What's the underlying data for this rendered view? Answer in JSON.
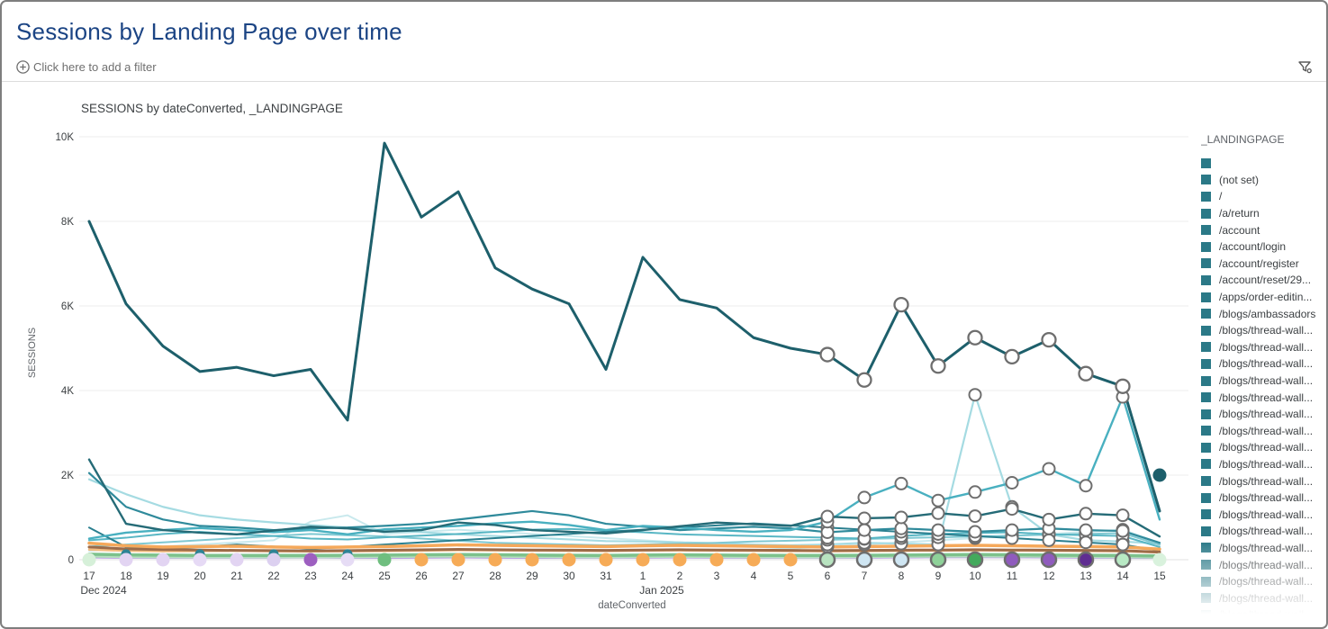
{
  "header": {
    "title": "Sessions by Landing Page over time"
  },
  "filter_bar": {
    "add_filter_label": "Click here to add a filter",
    "add_icon": "plus-circle-icon",
    "filter_icon": "filter-funnel-icon"
  },
  "chart": {
    "title": "SESSIONS by dateConverted, _LANDINGPAGE"
  },
  "legend": {
    "header": "_LANDINGPAGE",
    "swatch_color": "#2b7987",
    "items": [
      "",
      "(not set)",
      "/",
      "/a/return",
      "/account",
      "/account/login",
      "/account/register",
      "/account/reset/29...",
      "/apps/order-editin...",
      "/blogs/ambassadors",
      "/blogs/thread-wall...",
      "/blogs/thread-wall...",
      "/blogs/thread-wall...",
      "/blogs/thread-wall...",
      "/blogs/thread-wall...",
      "/blogs/thread-wall...",
      "/blogs/thread-wall...",
      "/blogs/thread-wall...",
      "/blogs/thread-wall...",
      "/blogs/thread-wall...",
      "/blogs/thread-wall...",
      "/blogs/thread-wall...",
      "/blogs/thread-wall...",
      "/blogs/thread-wall...",
      "/blogs/thread-wall...",
      "/blogs/thread-wall...",
      "/blogs/thread-wall...",
      "/blogs/thread-wall..."
    ]
  },
  "colors": {
    "title_blue": "#1b4484",
    "main_line": "#1d5f6b",
    "grid": "#e9e9e9",
    "axis_text": "#3c4043",
    "axis_title": "#5f6368"
  },
  "chart_data": {
    "type": "line",
    "title": "SESSIONS by dateConverted, _LANDINGPAGE",
    "xlabel": "dateConverted",
    "ylabel": "SESSIONS",
    "ylim": [
      0,
      10000
    ],
    "grid": true,
    "legend_position": "right",
    "x_labels": [
      "17",
      "18",
      "19",
      "20",
      "21",
      "22",
      "23",
      "24",
      "25",
      "26",
      "27",
      "28",
      "29",
      "30",
      "31",
      "1",
      "2",
      "3",
      "4",
      "5",
      "6",
      "7",
      "8",
      "9",
      "10",
      "11",
      "12",
      "13",
      "14",
      "15"
    ],
    "month_labels": [
      {
        "label": "Dec 2024",
        "day_index": 0,
        "dx": 16
      },
      {
        "label": "Jan 2025",
        "day_index": 15,
        "dx": 21
      }
    ],
    "y_ticks": [
      {
        "label": "10K",
        "value": 10000
      },
      {
        "label": "8K",
        "value": 8000
      },
      {
        "label": "6K",
        "value": 6000
      },
      {
        "label": "4K",
        "value": 4000
      },
      {
        "label": "2K",
        "value": 2000
      },
      {
        "label": "0",
        "value": 0
      }
    ],
    "series": [
      {
        "name": "pale-low",
        "color": "#c9e9ed",
        "width": 2,
        "markers": true,
        "values": [
          210,
          260,
          310,
          360,
          410,
          460,
          900,
          1050,
          610,
          660,
          710,
          660,
          610,
          560,
          510,
          460,
          410,
          360,
          310,
          260,
          310,
          360,
          410,
          460,
          510,
          560,
          610,
          660,
          710,
          400
        ]
      },
      {
        "name": "pale-spike",
        "color": "#a5dbe2",
        "width": 2.2,
        "markers": true,
        "values": [
          1900,
          1550,
          1250,
          1050,
          950,
          880,
          820,
          760,
          700,
          650,
          600,
          560,
          520,
          480,
          440,
          430,
          410,
          390,
          360,
          340,
          360,
          400,
          380,
          360,
          3900,
          1250,
          600,
          460,
          430,
          380
        ]
      },
      {
        "name": "teal-4",
        "color": "#7fc8d2",
        "width": 2,
        "markers": true,
        "values": [
          310,
          360,
          410,
          460,
          510,
          560,
          610,
          580,
          550,
          500,
          450,
          400,
          380,
          360,
          340,
          360,
          380,
          400,
          430,
          450,
          470,
          490,
          510,
          530,
          550,
          570,
          590,
          610,
          630,
          350
        ]
      },
      {
        "name": "teal-3",
        "color": "#58b6c4",
        "width": 2,
        "markers": true,
        "values": [
          460,
          520,
          610,
          660,
          600,
          560,
          500,
          480,
          530,
          570,
          610,
          660,
          710,
          730,
          690,
          650,
          600,
          580,
          560,
          540,
          520,
          500,
          560,
          610,
          630,
          650,
          600,
          580,
          560,
          300
        ]
      },
      {
        "name": "teal-5",
        "color": "#2a7f8f",
        "width": 2,
        "markers": true,
        "values": [
          760,
          300,
          260,
          300,
          360,
          310,
          260,
          300,
          360,
          410,
          460,
          510,
          560,
          610,
          660,
          710,
          760,
          810,
          860,
          810,
          760,
          710,
          660,
          610,
          560,
          510,
          460,
          410,
          360,
          210
        ]
      },
      {
        "name": "teal-2",
        "color": "#2f8a9b",
        "width": 2.2,
        "markers": true,
        "values": [
          2050,
          1250,
          950,
          800,
          760,
          700,
          740,
          760,
          800,
          850,
          950,
          1050,
          1150,
          1050,
          850,
          780,
          700,
          740,
          780,
          740,
          650,
          700,
          740,
          700,
          660,
          700,
          740,
          700,
          680,
          400
        ]
      },
      {
        "name": "teal-rise",
        "color": "#49b0c0",
        "width": 2.4,
        "markers": true,
        "values": [
          500,
          640,
          700,
          750,
          700,
          650,
          700,
          600,
          720,
          760,
          800,
          860,
          900,
          820,
          700,
          800,
          760,
          700,
          660,
          700,
          900,
          1470,
          1800,
          1400,
          1600,
          1820,
          2150,
          1750,
          3850,
          950
        ]
      },
      {
        "name": "dark-flat",
        "color": "#256b77",
        "width": 2.4,
        "markers": true,
        "values": [
          2370,
          850,
          700,
          640,
          600,
          690,
          780,
          740,
          660,
          700,
          880,
          820,
          700,
          660,
          620,
          700,
          790,
          880,
          840,
          800,
          1020,
          980,
          1000,
          1100,
          1030,
          1200,
          950,
          1090,
          1050,
          550
        ]
      },
      {
        "name": "gray",
        "color": "#9aa0a6",
        "width": 2,
        "markers": false,
        "values": [
          95,
          88,
          84,
          80,
          80,
          80,
          80,
          84,
          88,
          92,
          96,
          92,
          88,
          84,
          80,
          88,
          92,
          88,
          84,
          80,
          80,
          84,
          88,
          92,
          96,
          92,
          88,
          84,
          80,
          70
        ]
      },
      {
        "name": "lavender",
        "color": "#d9c9ef",
        "width": 2,
        "markers": false,
        "values": [
          45,
          42,
          40,
          40,
          40,
          40,
          42,
          40,
          40,
          42,
          45,
          42,
          40,
          40,
          40,
          42,
          45,
          42,
          40,
          40,
          40,
          42,
          45,
          47,
          50,
          47,
          45,
          42,
          40,
          36
        ]
      },
      {
        "name": "purple",
        "color": "#9b7fd4",
        "width": 2,
        "markers": false,
        "values": [
          60,
          55,
          50,
          50,
          50,
          50,
          55,
          50,
          50,
          55,
          60,
          55,
          50,
          50,
          50,
          55,
          60,
          55,
          50,
          50,
          50,
          55,
          60,
          66,
          70,
          66,
          60,
          55,
          50,
          42
        ]
      },
      {
        "name": "orange-light",
        "color": "#f3bd82",
        "width": 2.5,
        "markers": false,
        "values": [
          240,
          210,
          200,
          205,
          210,
          200,
          195,
          200,
          205,
          215,
          225,
          220,
          215,
          210,
          205,
          215,
          220,
          215,
          210,
          205,
          200,
          205,
          210,
          215,
          220,
          215,
          210,
          205,
          200,
          170
        ]
      },
      {
        "name": "brown",
        "color": "#9c6b49",
        "width": 3,
        "markers": false,
        "values": [
          300,
          255,
          240,
          230,
          220,
          215,
          210,
          215,
          225,
          235,
          245,
          238,
          230,
          226,
          220,
          230,
          236,
          230,
          226,
          220,
          215,
          220,
          226,
          230,
          236,
          230,
          226,
          220,
          215,
          180
        ]
      },
      {
        "name": "orange",
        "color": "#f5a85a",
        "width": 3.5,
        "markers": false,
        "values": [
          390,
          330,
          300,
          310,
          320,
          300,
          290,
          300,
          310,
          330,
          350,
          340,
          330,
          320,
          310,
          330,
          340,
          330,
          320,
          310,
          300,
          310,
          320,
          330,
          340,
          330,
          320,
          310,
          300,
          250
        ]
      },
      {
        "name": "green-pale",
        "color": "#b5dfc0",
        "width": 3.5,
        "markers": false,
        "values": [
          85,
          78,
          72,
          70,
          70,
          70,
          70,
          72,
          76,
          82,
          86,
          82,
          76,
          72,
          70,
          76,
          82,
          76,
          72,
          70,
          70,
          76,
          82,
          86,
          90,
          86,
          82,
          76,
          72,
          62
        ]
      },
      {
        "name": "green",
        "color": "#7dc28c",
        "width": 3.5,
        "markers": false,
        "values": [
          130,
          115,
          108,
          102,
          100,
          100,
          100,
          105,
          110,
          116,
          122,
          116,
          110,
          105,
          100,
          110,
          116,
          110,
          105,
          100,
          100,
          105,
          110,
          116,
          122,
          116,
          110,
          105,
          100,
          90
        ]
      },
      {
        "name": "main",
        "color": "#1d5f6b",
        "width": 3,
        "markers": true,
        "main": true,
        "values": [
          8000,
          6050,
          5050,
          4450,
          4550,
          4350,
          4500,
          3300,
          9850,
          8100,
          8700,
          6900,
          6400,
          6050,
          4500,
          7150,
          6150,
          5950,
          5250,
          5000,
          4850,
          4250,
          6030,
          4580,
          5250,
          4800,
          5200,
          4400,
          4100,
          1150
        ]
      }
    ],
    "marker_range": {
      "from": 20,
      "to": 28
    },
    "zero_dots": [
      {
        "color": "#d6f0d9",
        "ring": false
      },
      {
        "color": "#e2d4f2",
        "ring": false
      },
      {
        "color": "#e2d4f2",
        "ring": false
      },
      {
        "color": "#e6daf5",
        "ring": false
      },
      {
        "color": "#e2d4f2",
        "ring": false
      },
      {
        "color": "#dcd0f0",
        "ring": false
      },
      {
        "color": "#9d5fc0",
        "ring": false
      },
      {
        "color": "#e6dcf5",
        "ring": false
      },
      {
        "color": "#6fbe7f",
        "ring": false
      },
      {
        "color": "#f6ab57",
        "ring": false
      },
      {
        "color": "#f6ab57",
        "ring": false
      },
      {
        "color": "#f6ab57",
        "ring": false
      },
      {
        "color": "#f6ab57",
        "ring": false
      },
      {
        "color": "#f6ab57",
        "ring": false
      },
      {
        "color": "#f6ab57",
        "ring": false
      },
      {
        "color": "#f6ab57",
        "ring": false
      },
      {
        "color": "#f6ab57",
        "ring": false
      },
      {
        "color": "#f6ab57",
        "ring": false
      },
      {
        "color": "#f6ab57",
        "ring": false
      },
      {
        "color": "#f6ab57",
        "ring": false
      },
      {
        "color": "#b8e3c0",
        "ring": true
      },
      {
        "color": "#cfe6f3",
        "ring": true
      },
      {
        "color": "#cfe6f3",
        "ring": true
      },
      {
        "color": "#8ed199",
        "ring": true
      },
      {
        "color": "#43a95c",
        "ring": true
      },
      {
        "color": "#8f5bbd",
        "ring": true
      },
      {
        "color": "#8f5bbd",
        "ring": true
      },
      {
        "color": "#5f2d91",
        "ring": true
      },
      {
        "color": "#b8e9c4",
        "ring": true
      },
      {
        "color": "#d9f2dd",
        "ring": false
      }
    ],
    "small_teal_dots": {
      "day_indices": [
        1,
        3,
        5,
        7
      ],
      "value": 130,
      "color": "#2e8394"
    },
    "isolated_point": {
      "day_index": 29,
      "value": 2000,
      "color": "#1d5f6b"
    }
  }
}
